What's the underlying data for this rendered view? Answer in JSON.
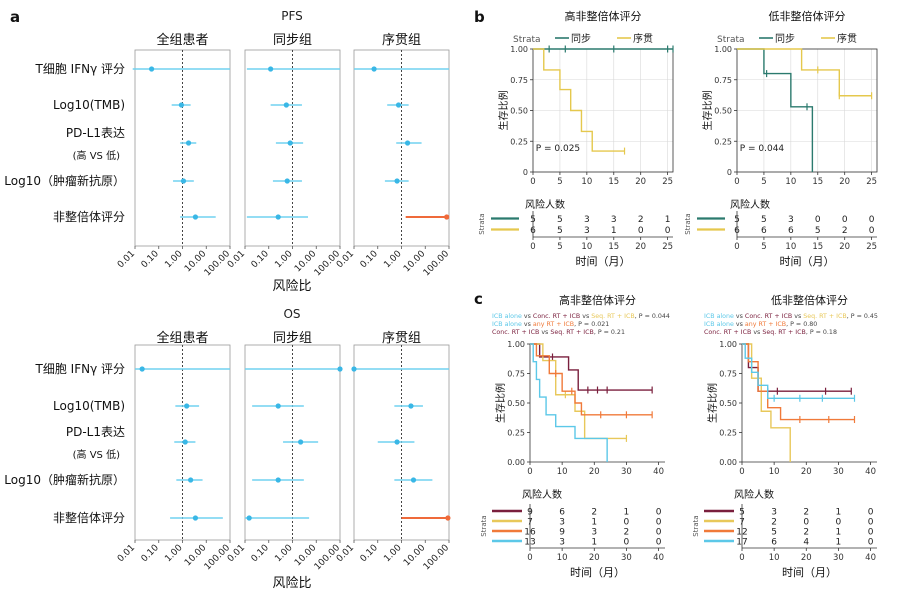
{
  "panel_labels": {
    "a": "a",
    "b": "b",
    "c": "c"
  },
  "colors": {
    "forest_ci": "#70d2f0",
    "forest_point": "#39b7e6",
    "forest_highlight": "#ef6a3a",
    "km_sync": "#2b7a6e",
    "km_seq": "#e5c84d",
    "km_grid": "#d8d8d8",
    "c_chemo_conc": "#7a1f3d",
    "c_seq": "#e8c85a",
    "c_any": "#f07a3a",
    "c_icb_alone": "#5cc8e8"
  },
  "forest": {
    "group_titles": [
      "全组患者",
      "同步组",
      "序贯组"
    ],
    "xlabel": "风险比",
    "tick_labels": [
      "0.01",
      "0.10",
      "1.00",
      "10.00",
      "100.00"
    ],
    "rows": [
      {
        "label": "T细胞 IFNγ 评分",
        "sub": ""
      },
      {
        "label": "Log10(TMB)",
        "sub": ""
      },
      {
        "label": "PD-L1表达",
        "sub": "(高 VS 低)"
      },
      {
        "label": "Log10（肿瘤新抗原）",
        "sub": ""
      },
      {
        "label": "非整倍体评分",
        "sub": ""
      }
    ]
  },
  "chart_data": [
    {
      "type": "forest",
      "title": "PFS",
      "scale": "log10",
      "xlim": [
        0.01,
        100
      ],
      "reference": 1,
      "groups": [
        {
          "name": "全组患者",
          "estimates": [
            [
              0.05,
              0.008,
              100
            ],
            [
              0.9,
              0.35,
              2.2
            ],
            [
              1.8,
              0.8,
              3.8
            ],
            [
              1.1,
              0.4,
              3
            ],
            [
              3.5,
              0.8,
              25
            ]
          ]
        },
        {
          "name": "同步组",
          "estimates": [
            [
              0.12,
              0.012,
              100
            ],
            [
              0.55,
              0.12,
              2.5
            ],
            [
              0.8,
              0.2,
              2.8
            ],
            [
              0.6,
              0.15,
              2.5
            ],
            [
              0.25,
              0.012,
              4.5
            ]
          ]
        },
        {
          "name": "序贯组",
          "estimates": [
            [
              0.07,
              0.01,
              100
            ],
            [
              0.75,
              0.25,
              2
            ],
            [
              1.8,
              0.6,
              7
            ],
            [
              0.65,
              0.2,
              2
            ],
            [
              80,
              1.5,
              80
            ]
          ]
        }
      ]
    },
    {
      "type": "forest",
      "title": "OS",
      "scale": "log10",
      "xlim": [
        0.01,
        100
      ],
      "reference": 1,
      "groups": [
        {
          "name": "全组患者",
          "estimates": [
            [
              0.02,
              0.01,
              100
            ],
            [
              1.5,
              0.5,
              5
            ],
            [
              1.3,
              0.45,
              3.5
            ],
            [
              2.2,
              0.55,
              7
            ],
            [
              3.5,
              0.3,
              50
            ]
          ]
        },
        {
          "name": "同步组",
          "estimates": [
            [
              100,
              0.01,
              100
            ],
            [
              0.25,
              0.02,
              3
            ],
            [
              2.2,
              0.4,
              12
            ],
            [
              0.25,
              0.02,
              3
            ],
            [
              0.015,
              0.01,
              5
            ]
          ]
        },
        {
          "name": "序贯组",
          "estimates": [
            [
              0.01,
              0.01,
              100
            ],
            [
              2.5,
              0.5,
              8
            ],
            [
              0.65,
              0.1,
              3.5
            ],
            [
              3.2,
              0.5,
              20
            ],
            [
              90,
              1,
              90
            ]
          ]
        }
      ]
    },
    {
      "type": "km_line",
      "title": "高非整倍体评分",
      "legend_title": "Strata",
      "legend": [
        "同步",
        "序贯"
      ],
      "ylabel": "生存比例",
      "xlabel": "时间（月）",
      "xticks": [
        0,
        5,
        10,
        15,
        20,
        25
      ],
      "yticks": [
        "0",
        "0.25",
        "0.50",
        "0.75",
        "1.00"
      ],
      "xlim": [
        0,
        26
      ],
      "ylim": [
        0,
        1
      ],
      "pvalue": "P = 0.025",
      "series": [
        {
          "name": "同步",
          "steps": [
            [
              0,
              1
            ],
            [
              26,
              1
            ]
          ],
          "censors": [
            [
              3,
              1
            ],
            [
              6,
              1
            ],
            [
              15,
              1
            ],
            [
              25,
              1
            ],
            [
              26,
              1
            ]
          ]
        },
        {
          "name": "序贯",
          "steps": [
            [
              0,
              1
            ],
            [
              2,
              1
            ],
            [
              2,
              0.83
            ],
            [
              5,
              0.83
            ],
            [
              5,
              0.67
            ],
            [
              7,
              0.67
            ],
            [
              7,
              0.5
            ],
            [
              9,
              0.5
            ],
            [
              9,
              0.33
            ],
            [
              11,
              0.33
            ],
            [
              11,
              0.17
            ],
            [
              17,
              0.17
            ]
          ],
          "censors": [
            [
              17,
              0.17
            ]
          ]
        }
      ],
      "risk_title": "风险人数",
      "risk_strata_label": "Strata",
      "risk_table": [
        [
          "5",
          "5",
          "3",
          "3",
          "2",
          "1"
        ],
        [
          "6",
          "5",
          "3",
          "1",
          "0",
          "0"
        ]
      ]
    },
    {
      "type": "km_line",
      "title": "低非整倍体评分",
      "legend_title": "Strata",
      "legend": [
        "同步",
        "序贯"
      ],
      "ylabel": "生存比例",
      "xlabel": "时间（月）",
      "xticks": [
        0,
        5,
        10,
        15,
        20,
        25
      ],
      "yticks": [
        "0",
        "0.25",
        "0.50",
        "0.75",
        "1.00"
      ],
      "xlim": [
        0,
        26
      ],
      "ylim": [
        0,
        1
      ],
      "pvalue": "P = 0.044",
      "series": [
        {
          "name": "同步",
          "steps": [
            [
              0,
              1
            ],
            [
              5,
              1
            ],
            [
              5,
              0.8
            ],
            [
              10,
              0.8
            ],
            [
              10,
              0.53
            ],
            [
              14,
              0.53
            ],
            [
              14,
              0
            ]
          ],
          "censors": [
            [
              5.5,
              0.8
            ],
            [
              13,
              0.53
            ]
          ]
        },
        {
          "name": "序贯",
          "steps": [
            [
              0,
              1
            ],
            [
              12,
              1
            ],
            [
              12,
              0.83
            ],
            [
              19,
              0.83
            ],
            [
              19,
              0.62
            ],
            [
              25,
              0.62
            ]
          ],
          "censors": [
            [
              15,
              0.83
            ],
            [
              19,
              0.62
            ],
            [
              25,
              0.62
            ]
          ]
        }
      ],
      "risk_title": "风险人数",
      "risk_strata_label": "Strata",
      "risk_table": [
        [
          "5",
          "5",
          "3",
          "0",
          "0",
          "0"
        ],
        [
          "6",
          "6",
          "6",
          "5",
          "2",
          "0"
        ]
      ]
    },
    {
      "type": "km_line",
      "title": "高非整倍体评分",
      "notes": [
        {
          "a": "ICB alone",
          "b": "Conc. RT + ICB",
          "c": "Seq. RT + ICB",
          "p": "P = 0.044"
        },
        {
          "a": "ICB alone",
          "b": "any RT + ICB",
          "c": "",
          "p": "P = 0.021"
        },
        {
          "a": "Conc. RT + ICB",
          "b": "Seq. RT + ICB",
          "c": "",
          "p": "P = 0.21"
        }
      ],
      "vs": "vs",
      "ylabel": "生存比例",
      "xlabel": "时间（月）",
      "xticks": [
        0,
        10,
        20,
        30,
        40
      ],
      "yticks": [
        "0.00",
        "0.25",
        "0.50",
        "0.75",
        "1.00"
      ],
      "xlim": [
        0,
        42
      ],
      "ylim": [
        0,
        1
      ],
      "series": [
        {
          "name": "Conc. RT + ICB",
          "steps": [
            [
              0,
              1
            ],
            [
              3,
              1
            ],
            [
              3,
              0.89
            ],
            [
              12,
              0.89
            ],
            [
              12,
              0.78
            ],
            [
              15,
              0.78
            ],
            [
              15,
              0.61
            ],
            [
              38,
              0.61
            ]
          ],
          "censors": [
            [
              7,
              0.89
            ],
            [
              18,
              0.61
            ],
            [
              21,
              0.61
            ],
            [
              24,
              0.61
            ],
            [
              38,
              0.61
            ]
          ]
        },
        {
          "name": "Seq. RT + ICB",
          "steps": [
            [
              0,
              1
            ],
            [
              4,
              1
            ],
            [
              4,
              0.86
            ],
            [
              8,
              0.86
            ],
            [
              8,
              0.57
            ],
            [
              14,
              0.57
            ],
            [
              14,
              0.43
            ],
            [
              17,
              0.43
            ],
            [
              17,
              0.2
            ],
            [
              30,
              0.2
            ]
          ],
          "censors": [
            [
              11,
              0.57
            ],
            [
              30,
              0.2
            ]
          ]
        },
        {
          "name": "any RT + ICB",
          "steps": [
            [
              0,
              1
            ],
            [
              2,
              1
            ],
            [
              2,
              0.9
            ],
            [
              6,
              0.9
            ],
            [
              6,
              0.75
            ],
            [
              10,
              0.75
            ],
            [
              10,
              0.6
            ],
            [
              14,
              0.6
            ],
            [
              14,
              0.5
            ],
            [
              16,
              0.5
            ],
            [
              16,
              0.4
            ],
            [
              38,
              0.4
            ]
          ],
          "censors": [
            [
              8,
              0.75
            ],
            [
              13,
              0.6
            ],
            [
              22,
              0.4
            ],
            [
              30,
              0.4
            ],
            [
              38,
              0.4
            ]
          ]
        },
        {
          "name": "ICB alone",
          "steps": [
            [
              0,
              1
            ],
            [
              1,
              1
            ],
            [
              1,
              0.85
            ],
            [
              2,
              0.85
            ],
            [
              2,
              0.7
            ],
            [
              3,
              0.7
            ],
            [
              3,
              0.55
            ],
            [
              5,
              0.55
            ],
            [
              5,
              0.4
            ],
            [
              8,
              0.4
            ],
            [
              8,
              0.3
            ],
            [
              14,
              0.3
            ],
            [
              14,
              0.2
            ],
            [
              24,
              0.2
            ],
            [
              24,
              0
            ]
          ],
          "censors": []
        }
      ],
      "risk_title": "风险人数",
      "risk_strata_label": "Strata",
      "risk_table": [
        [
          "9",
          "6",
          "2",
          "1",
          "0"
        ],
        [
          "7",
          "3",
          "1",
          "0",
          "0"
        ],
        [
          "16",
          "9",
          "3",
          "2",
          "0"
        ],
        [
          "13",
          "3",
          "1",
          "0",
          "0"
        ]
      ]
    },
    {
      "type": "km_line",
      "title": "低非整倍体评分",
      "notes": [
        {
          "a": "ICB alone",
          "b": "Conc. RT + ICB",
          "c": "Seq. RT + ICB",
          "p": "P = 0.45"
        },
        {
          "a": "ICB alone",
          "b": "any RT + ICB",
          "c": "",
          "p": "P = 0.80"
        },
        {
          "a": "Conc. RT + ICB",
          "b": "Seq. RT + ICB",
          "c": "",
          "p": "P = 0.18"
        }
      ],
      "vs": "vs",
      "ylabel": "生存比例",
      "xlabel": "时间（月）",
      "xticks": [
        0,
        10,
        20,
        30,
        40
      ],
      "yticks": [
        "0.00",
        "0.25",
        "0.50",
        "0.75",
        "1.00"
      ],
      "xlim": [
        0,
        42
      ],
      "ylim": [
        0,
        1
      ],
      "series": [
        {
          "name": "Conc. RT + ICB",
          "steps": [
            [
              0,
              1
            ],
            [
              2,
              1
            ],
            [
              2,
              0.8
            ],
            [
              5,
              0.8
            ],
            [
              5,
              0.6
            ],
            [
              34,
              0.6
            ]
          ],
          "censors": [
            [
              8,
              0.6
            ],
            [
              11,
              0.6
            ],
            [
              26,
              0.6
            ],
            [
              34,
              0.6
            ]
          ]
        },
        {
          "name": "Seq. RT + ICB",
          "steps": [
            [
              0,
              1
            ],
            [
              3,
              1
            ],
            [
              3,
              0.71
            ],
            [
              6,
              0.71
            ],
            [
              6,
              0.43
            ],
            [
              9,
              0.43
            ],
            [
              9,
              0.29
            ],
            [
              15,
              0.29
            ],
            [
              15,
              0
            ]
          ],
          "censors": []
        },
        {
          "name": "any RT + ICB",
          "steps": [
            [
              0,
              1
            ],
            [
              2,
              1
            ],
            [
              2,
              0.85
            ],
            [
              5,
              0.85
            ],
            [
              5,
              0.6
            ],
            [
              8,
              0.6
            ],
            [
              8,
              0.46
            ],
            [
              12,
              0.46
            ],
            [
              12,
              0.36
            ],
            [
              35,
              0.36
            ]
          ],
          "censors": [
            [
              18,
              0.36
            ],
            [
              27,
              0.36
            ],
            [
              35,
              0.36
            ]
          ]
        },
        {
          "name": "ICB alone",
          "steps": [
            [
              0,
              1
            ],
            [
              1,
              1
            ],
            [
              1,
              0.88
            ],
            [
              3,
              0.88
            ],
            [
              3,
              0.76
            ],
            [
              5,
              0.76
            ],
            [
              5,
              0.65
            ],
            [
              8,
              0.65
            ],
            [
              8,
              0.54
            ],
            [
              35,
              0.54
            ]
          ],
          "censors": [
            [
              10,
              0.54
            ],
            [
              18,
              0.54
            ],
            [
              25,
              0.54
            ],
            [
              35,
              0.54
            ]
          ]
        }
      ],
      "risk_title": "风险人数",
      "risk_strata_label": "Strata",
      "risk_table": [
        [
          "5",
          "3",
          "2",
          "1",
          "0"
        ],
        [
          "7",
          "2",
          "0",
          "0",
          "0"
        ],
        [
          "12",
          "5",
          "2",
          "1",
          "0"
        ],
        [
          "17",
          "6",
          "4",
          "1",
          "0"
        ]
      ]
    }
  ]
}
